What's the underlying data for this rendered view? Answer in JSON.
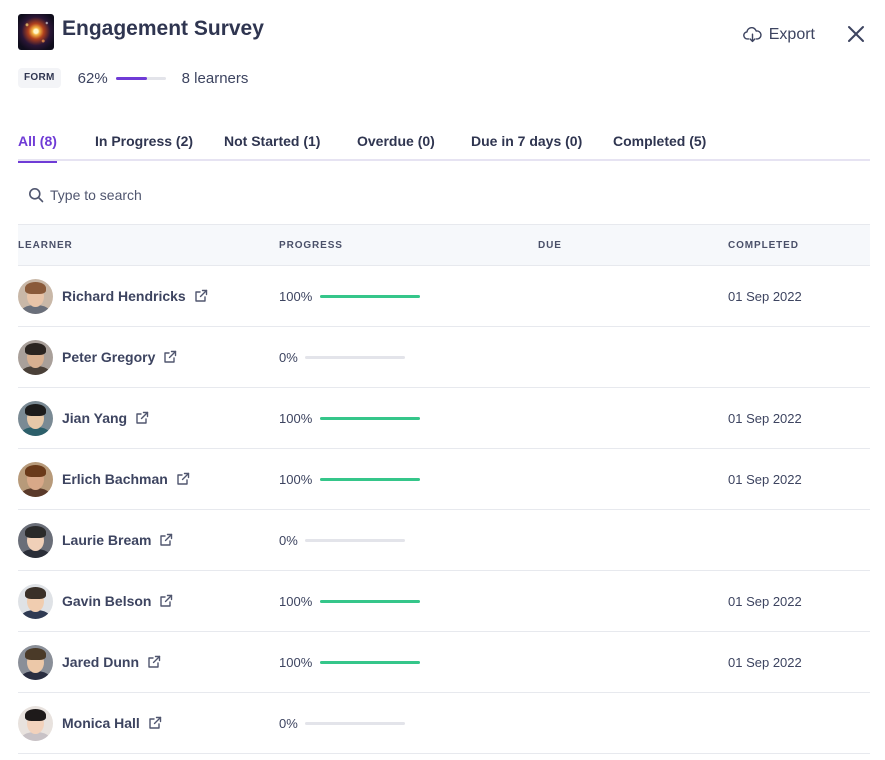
{
  "header": {
    "title": "Engagement Survey",
    "type_badge": "FORM",
    "progress_text": "62%",
    "progress_value": 0.62,
    "learners_text": "8 learners",
    "export_label": "Export",
    "accent_color": "#6f3bd6"
  },
  "tabs": [
    {
      "label": "All (8)",
      "active": true
    },
    {
      "label": "In Progress (2)",
      "active": false
    },
    {
      "label": "Not Started (1)",
      "active": false
    },
    {
      "label": "Overdue (0)",
      "active": false
    },
    {
      "label": "Due in 7 days (0)",
      "active": false
    },
    {
      "label": "Completed (5)",
      "active": false
    }
  ],
  "search": {
    "placeholder": "Type to search",
    "value": ""
  },
  "table": {
    "columns": [
      "LEARNER",
      "PROGRESS",
      "DUE",
      "COMPLETED"
    ],
    "progress_color": "#35c68a",
    "rows": [
      {
        "name": "Richard Hendricks",
        "progress_text": "100%",
        "progress": 1.0,
        "due": "",
        "completed": "01 Sep 2022"
      },
      {
        "name": "Peter Gregory",
        "progress_text": "0%",
        "progress": 0.0,
        "due": "",
        "completed": ""
      },
      {
        "name": "Jian Yang",
        "progress_text": "100%",
        "progress": 1.0,
        "due": "",
        "completed": "01 Sep 2022"
      },
      {
        "name": "Erlich Bachman",
        "progress_text": "100%",
        "progress": 1.0,
        "due": "",
        "completed": "01 Sep 2022"
      },
      {
        "name": "Laurie Bream",
        "progress_text": "0%",
        "progress": 0.0,
        "due": "",
        "completed": ""
      },
      {
        "name": "Gavin Belson",
        "progress_text": "100%",
        "progress": 1.0,
        "due": "",
        "completed": "01 Sep 2022"
      },
      {
        "name": "Jared Dunn",
        "progress_text": "100%",
        "progress": 1.0,
        "due": "",
        "completed": "01 Sep 2022"
      },
      {
        "name": "Monica Hall",
        "progress_text": "0%",
        "progress": 0.0,
        "due": "",
        "completed": ""
      }
    ]
  }
}
